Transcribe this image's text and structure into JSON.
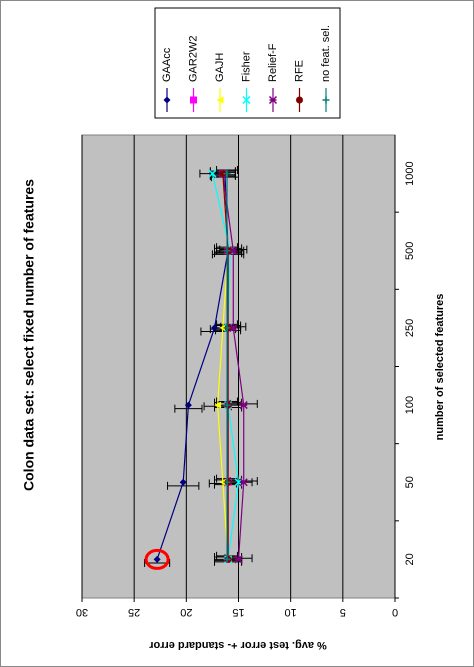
{
  "chart_data": {
    "type": "line",
    "title": "Colon data set: select fixed number of features",
    "x_label": "number of selected features",
    "y_label": "% avg. test error +- standard error",
    "categories": [
      "20",
      "50",
      "100",
      "250",
      "500",
      "1000"
    ],
    "ylim": [
      0,
      30
    ],
    "yticks": [
      0,
      5,
      10,
      15,
      20,
      25,
      30
    ],
    "grid": true,
    "legend": "right",
    "series": [
      {
        "name": "GAAcc",
        "color": "#000080",
        "marker": "diamond",
        "values": [
          22.8,
          20.3,
          19.8,
          17.3,
          16.0,
          16.3
        ],
        "errors": [
          1.2,
          1.5,
          1.3,
          1.3,
          1.5,
          1.3
        ]
      },
      {
        "name": "GAR2W2",
        "color": "#ff00ff",
        "marker": "square",
        "values": [
          16.0,
          16.0,
          16.0,
          16.0,
          16.0,
          16.5
        ],
        "errors": [
          1.3,
          1.3,
          1.3,
          1.2,
          1.3,
          1.2
        ]
      },
      {
        "name": "GAJH",
        "color": "#ffff00",
        "marker": "triangle",
        "values": [
          16.0,
          16.5,
          17.0,
          16.5,
          16.0,
          16.5
        ],
        "errors": [
          1.3,
          1.3,
          1.3,
          1.2,
          1.3,
          1.2
        ]
      },
      {
        "name": "Fisher",
        "color": "#00ffff",
        "marker": "x",
        "values": [
          16.0,
          15.0,
          16.0,
          16.0,
          15.8,
          17.5
        ],
        "errors": [
          1.3,
          1.3,
          1.3,
          1.2,
          1.3,
          1.2
        ]
      },
      {
        "name": "Relief-F",
        "color": "#800080",
        "marker": "star",
        "values": [
          15.0,
          14.5,
          14.5,
          15.5,
          15.5,
          16.5
        ],
        "errors": [
          1.3,
          1.3,
          1.3,
          1.2,
          1.3,
          1.2
        ]
      },
      {
        "name": "RFE",
        "color": "#800000",
        "marker": "circle",
        "values": [
          16.0,
          16.0,
          16.0,
          16.0,
          16.0,
          16.5
        ],
        "errors": [
          1.3,
          1.3,
          1.3,
          1.2,
          1.3,
          1.2
        ]
      },
      {
        "name": "no feat. sel.",
        "color": "#008080",
        "marker": "plus",
        "values": [
          16.1,
          16.1,
          16.1,
          16.1,
          16.1,
          16.1
        ],
        "errors": [
          1.0,
          1.0,
          1.0,
          1.0,
          1.0,
          1.0
        ]
      }
    ]
  }
}
